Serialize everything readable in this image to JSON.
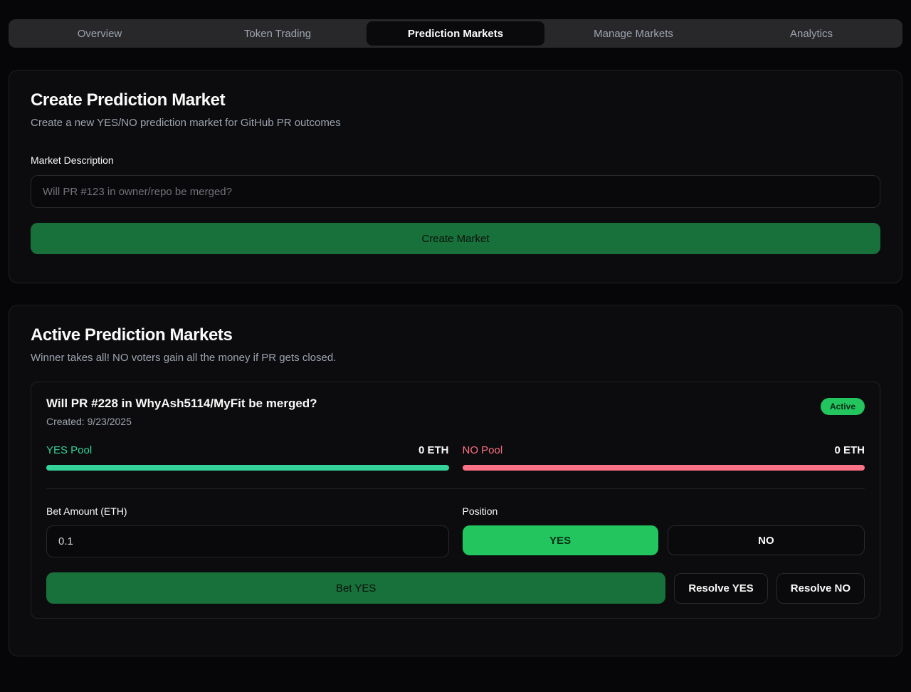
{
  "tabs": [
    {
      "label": "Overview",
      "active": false
    },
    {
      "label": "Token Trading",
      "active": false
    },
    {
      "label": "Prediction Markets",
      "active": true
    },
    {
      "label": "Manage Markets",
      "active": false
    },
    {
      "label": "Analytics",
      "active": false
    }
  ],
  "create_market": {
    "title": "Create Prediction Market",
    "subtitle": "Create a new YES/NO prediction market for GitHub PR outcomes",
    "description_label": "Market Description",
    "description_placeholder": "Will PR #123 in owner/repo be merged?",
    "submit_label": "Create Market"
  },
  "active_markets": {
    "title": "Active Prediction Markets",
    "subtitle": "Winner takes all! NO voters gain all the money if PR gets closed.",
    "markets": [
      {
        "question": "Will PR #228 in WhyAsh5114/MyFit be merged?",
        "created": "Created: 9/23/2025",
        "status": "Active",
        "yes_pool_label": "YES Pool",
        "yes_pool_value": "0 ETH",
        "no_pool_label": "NO Pool",
        "no_pool_value": "0 ETH",
        "bet_amount_label": "Bet Amount (ETH)",
        "bet_amount_value": "0.1",
        "position_label": "Position",
        "position_yes_label": "YES",
        "position_no_label": "NO",
        "bet_button_label": "Bet YES",
        "resolve_yes_label": "Resolve YES",
        "resolve_no_label": "Resolve NO"
      }
    ]
  },
  "colors": {
    "accent_green": "#22c55e",
    "yes_pool": "#34d399",
    "no_pool": "#fb7185",
    "card_bg": "#0c0c0e",
    "page_bg": "#060608"
  }
}
